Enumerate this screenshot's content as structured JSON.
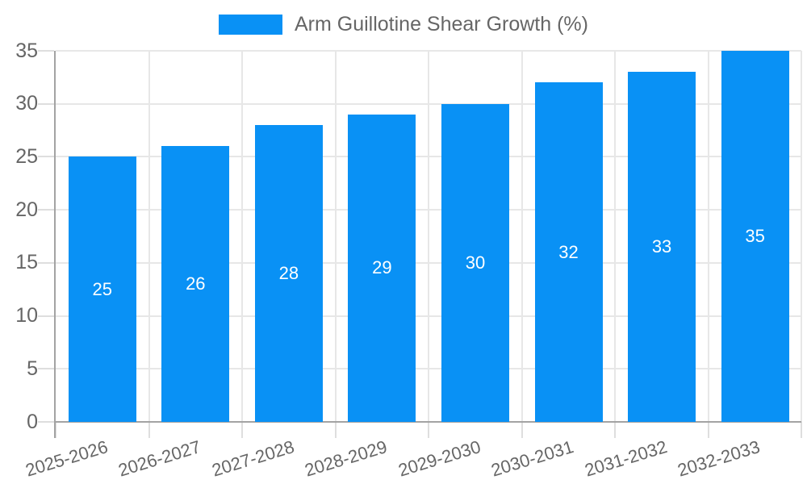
{
  "legend": {
    "label": "Arm Guillotine Shear Growth (%)"
  },
  "chart_data": {
    "type": "bar",
    "title": "",
    "series_name": "Arm Guillotine Shear Growth (%)",
    "categories": [
      "2025-2026",
      "2026-2027",
      "2027-2028",
      "2028-2029",
      "2029-2030",
      "2030-2031",
      "2031-2032",
      "2032-2033"
    ],
    "values": [
      25,
      26,
      28,
      29,
      30,
      32,
      33,
      35
    ],
    "value_labels": [
      "25",
      "26",
      "28",
      "29",
      "30",
      "32",
      "33",
      "35"
    ],
    "y_ticks": [
      0,
      5,
      10,
      15,
      20,
      25,
      30,
      35
    ],
    "ylim": [
      0,
      35
    ],
    "xlabel": "",
    "ylabel": "",
    "grid": true,
    "legend_position": "top",
    "x_label_rotation_deg": -17,
    "colors": {
      "bar": "#0991f5",
      "value_label": "#ffffff",
      "axis_text": "#666666",
      "gridline": "#e7e7e7",
      "tick": "#dedede",
      "axis_line": "#a3a3a3",
      "background": "#ffffff"
    }
  }
}
